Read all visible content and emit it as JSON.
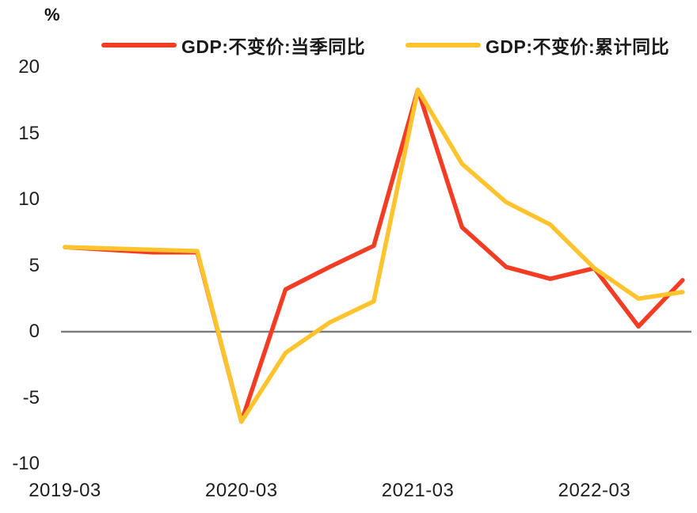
{
  "unit_label": "%",
  "legend": [
    {
      "label": "GDP:不变价:当季同比",
      "color": "#F23C24"
    },
    {
      "label": "GDP:不变价:累计同比",
      "color": "#FFC32E"
    }
  ],
  "chart_data": {
    "type": "line",
    "title": "",
    "xlabel": "",
    "ylabel": "%",
    "x": [
      "2019-03",
      "2019-06",
      "2019-09",
      "2019-12",
      "2020-03",
      "2020-06",
      "2020-09",
      "2020-12",
      "2021-03",
      "2021-06",
      "2021-09",
      "2021-12",
      "2022-03",
      "2022-06",
      "2022-09"
    ],
    "series": [
      {
        "name": "GDP:不变价:当季同比",
        "color": "#F23C24",
        "values": [
          6.4,
          6.2,
          6.0,
          6.0,
          -6.8,
          3.2,
          4.9,
          6.5,
          18.3,
          7.9,
          4.9,
          4.0,
          4.8,
          0.4,
          3.9
        ]
      },
      {
        "name": "GDP:不变价:累计同比",
        "color": "#FFC32E",
        "values": [
          6.4,
          6.3,
          6.2,
          6.1,
          -6.8,
          -1.6,
          0.7,
          2.3,
          18.3,
          12.7,
          9.8,
          8.1,
          4.8,
          2.5,
          3.0
        ]
      }
    ],
    "ylim": [
      -10,
      20
    ],
    "yticks": [
      20,
      15,
      10,
      5,
      0,
      -5,
      -10
    ],
    "x_tick_labels": [
      "2019-03",
      "2020-03",
      "2021-03",
      "2022-03"
    ],
    "x_tick_every": 4,
    "grid": false,
    "legend_position": "top",
    "zero_line": true,
    "zero_line_color": "#7C7C7C",
    "background": "#FFFFFF"
  }
}
